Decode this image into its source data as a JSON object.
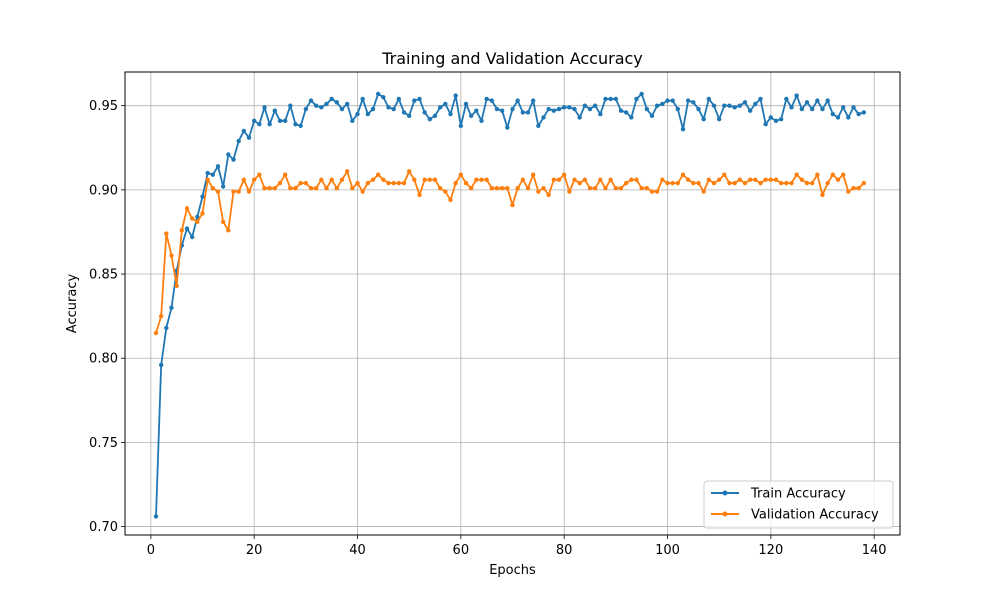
{
  "chart_data": {
    "type": "line",
    "title": "Training and Validation Accuracy",
    "xlabel": "Epochs",
    "ylabel": "Accuracy",
    "xlim": [
      -5,
      145
    ],
    "ylim": [
      0.695,
      0.97
    ],
    "xticks": [
      0,
      20,
      40,
      60,
      80,
      100,
      120,
      140
    ],
    "yticks": [
      0.7,
      0.75,
      0.8,
      0.85,
      0.9,
      0.95
    ],
    "xtick_labels": [
      "0",
      "20",
      "40",
      "60",
      "80",
      "100",
      "120",
      "140"
    ],
    "ytick_labels": [
      "0.70",
      "0.75",
      "0.80",
      "0.85",
      "0.90",
      "0.95"
    ],
    "grid": true,
    "legend_position": "lower-right",
    "series": [
      {
        "name": "Train Accuracy",
        "color": "#1f77b4",
        "marker": "circle",
        "x": [
          1,
          2,
          3,
          4,
          5,
          6,
          7,
          8,
          9,
          10,
          11,
          12,
          13,
          14,
          15,
          16,
          17,
          18,
          19,
          20,
          21,
          22,
          23,
          24,
          25,
          26,
          27,
          28,
          29,
          30,
          31,
          32,
          33,
          34,
          35,
          36,
          37,
          38,
          39,
          40,
          41,
          42,
          43,
          44,
          45,
          46,
          47,
          48,
          49,
          50,
          51,
          52,
          53,
          54,
          55,
          56,
          57,
          58,
          59,
          60,
          61,
          62,
          63,
          64,
          65,
          66,
          67,
          68,
          69,
          70,
          71,
          72,
          73,
          74,
          75,
          76,
          77,
          78,
          79,
          80,
          81,
          82,
          83,
          84,
          85,
          86,
          87,
          88,
          89,
          90,
          91,
          92,
          93,
          94,
          95,
          96,
          97,
          98,
          99,
          100,
          101,
          102,
          103,
          104,
          105,
          106,
          107,
          108,
          109,
          110,
          111,
          112,
          113,
          114,
          115,
          116,
          117,
          118,
          119,
          120,
          121,
          122,
          123,
          124,
          125,
          126,
          127,
          128,
          129,
          130,
          131,
          132,
          133,
          134,
          135,
          136,
          137,
          138
        ],
        "values": [
          0.706,
          0.796,
          0.818,
          0.83,
          0.852,
          0.867,
          0.877,
          0.872,
          0.884,
          0.896,
          0.91,
          0.909,
          0.914,
          0.902,
          0.921,
          0.918,
          0.929,
          0.935,
          0.931,
          0.941,
          0.939,
          0.949,
          0.939,
          0.947,
          0.941,
          0.941,
          0.95,
          0.939,
          0.938,
          0.948,
          0.953,
          0.95,
          0.949,
          0.951,
          0.954,
          0.952,
          0.948,
          0.951,
          0.941,
          0.945,
          0.954,
          0.945,
          0.948,
          0.957,
          0.955,
          0.949,
          0.948,
          0.954,
          0.946,
          0.944,
          0.953,
          0.954,
          0.946,
          0.942,
          0.944,
          0.949,
          0.951,
          0.945,
          0.956,
          0.938,
          0.951,
          0.944,
          0.947,
          0.941,
          0.954,
          0.953,
          0.948,
          0.947,
          0.937,
          0.948,
          0.953,
          0.946,
          0.946,
          0.953,
          0.938,
          0.943,
          0.948,
          0.947,
          0.948,
          0.949,
          0.949,
          0.948,
          0.943,
          0.95,
          0.948,
          0.95,
          0.945,
          0.954,
          0.954,
          0.954,
          0.947,
          0.946,
          0.943,
          0.954,
          0.957,
          0.948,
          0.944,
          0.95,
          0.951,
          0.953,
          0.953,
          0.948,
          0.936,
          0.953,
          0.952,
          0.948,
          0.942,
          0.954,
          0.95,
          0.942,
          0.95,
          0.95,
          0.949,
          0.95,
          0.952,
          0.947,
          0.951,
          0.954,
          0.939,
          0.943,
          0.941,
          0.942,
          0.954,
          0.949,
          0.956,
          0.948,
          0.952,
          0.948,
          0.953,
          0.948,
          0.953,
          0.945,
          0.943,
          0.949,
          0.943,
          0.949,
          0.945,
          0.946
        ]
      },
      {
        "name": "Validation Accuracy",
        "color": "#ff7f0e",
        "marker": "circle",
        "x": [
          1,
          2,
          3,
          4,
          5,
          6,
          7,
          8,
          9,
          10,
          11,
          12,
          13,
          14,
          15,
          16,
          17,
          18,
          19,
          20,
          21,
          22,
          23,
          24,
          25,
          26,
          27,
          28,
          29,
          30,
          31,
          32,
          33,
          34,
          35,
          36,
          37,
          38,
          39,
          40,
          41,
          42,
          43,
          44,
          45,
          46,
          47,
          48,
          49,
          50,
          51,
          52,
          53,
          54,
          55,
          56,
          57,
          58,
          59,
          60,
          61,
          62,
          63,
          64,
          65,
          66,
          67,
          68,
          69,
          70,
          71,
          72,
          73,
          74,
          75,
          76,
          77,
          78,
          79,
          80,
          81,
          82,
          83,
          84,
          85,
          86,
          87,
          88,
          89,
          90,
          91,
          92,
          93,
          94,
          95,
          96,
          97,
          98,
          99,
          100,
          101,
          102,
          103,
          104,
          105,
          106,
          107,
          108,
          109,
          110,
          111,
          112,
          113,
          114,
          115,
          116,
          117,
          118,
          119,
          120,
          121,
          122,
          123,
          124,
          125,
          126,
          127,
          128,
          129,
          130,
          131,
          132,
          133,
          134,
          135,
          136,
          137,
          138
        ],
        "values": [
          0.815,
          0.825,
          0.874,
          0.861,
          0.843,
          0.876,
          0.889,
          0.883,
          0.881,
          0.886,
          0.906,
          0.901,
          0.899,
          0.881,
          0.876,
          0.899,
          0.899,
          0.906,
          0.899,
          0.906,
          0.909,
          0.901,
          0.901,
          0.901,
          0.904,
          0.909,
          0.901,
          0.901,
          0.904,
          0.904,
          0.901,
          0.901,
          0.906,
          0.901,
          0.906,
          0.901,
          0.906,
          0.911,
          0.901,
          0.904,
          0.899,
          0.904,
          0.906,
          0.909,
          0.906,
          0.904,
          0.904,
          0.904,
          0.904,
          0.911,
          0.906,
          0.897,
          0.906,
          0.906,
          0.906,
          0.901,
          0.899,
          0.894,
          0.904,
          0.909,
          0.904,
          0.901,
          0.906,
          0.906,
          0.906,
          0.901,
          0.901,
          0.901,
          0.901,
          0.891,
          0.901,
          0.906,
          0.901,
          0.909,
          0.899,
          0.901,
          0.897,
          0.906,
          0.906,
          0.909,
          0.899,
          0.906,
          0.904,
          0.906,
          0.901,
          0.901,
          0.906,
          0.901,
          0.906,
          0.901,
          0.901,
          0.904,
          0.906,
          0.906,
          0.901,
          0.901,
          0.899,
          0.899,
          0.906,
          0.904,
          0.904,
          0.904,
          0.909,
          0.906,
          0.904,
          0.904,
          0.899,
          0.906,
          0.904,
          0.906,
          0.909,
          0.904,
          0.904,
          0.906,
          0.904,
          0.906,
          0.906,
          0.904,
          0.906,
          0.906,
          0.906,
          0.904,
          0.904,
          0.904,
          0.909,
          0.906,
          0.904,
          0.904,
          0.909,
          0.897,
          0.904,
          0.909,
          0.906,
          0.909,
          0.899,
          0.901,
          0.901,
          0.904
        ]
      }
    ]
  }
}
